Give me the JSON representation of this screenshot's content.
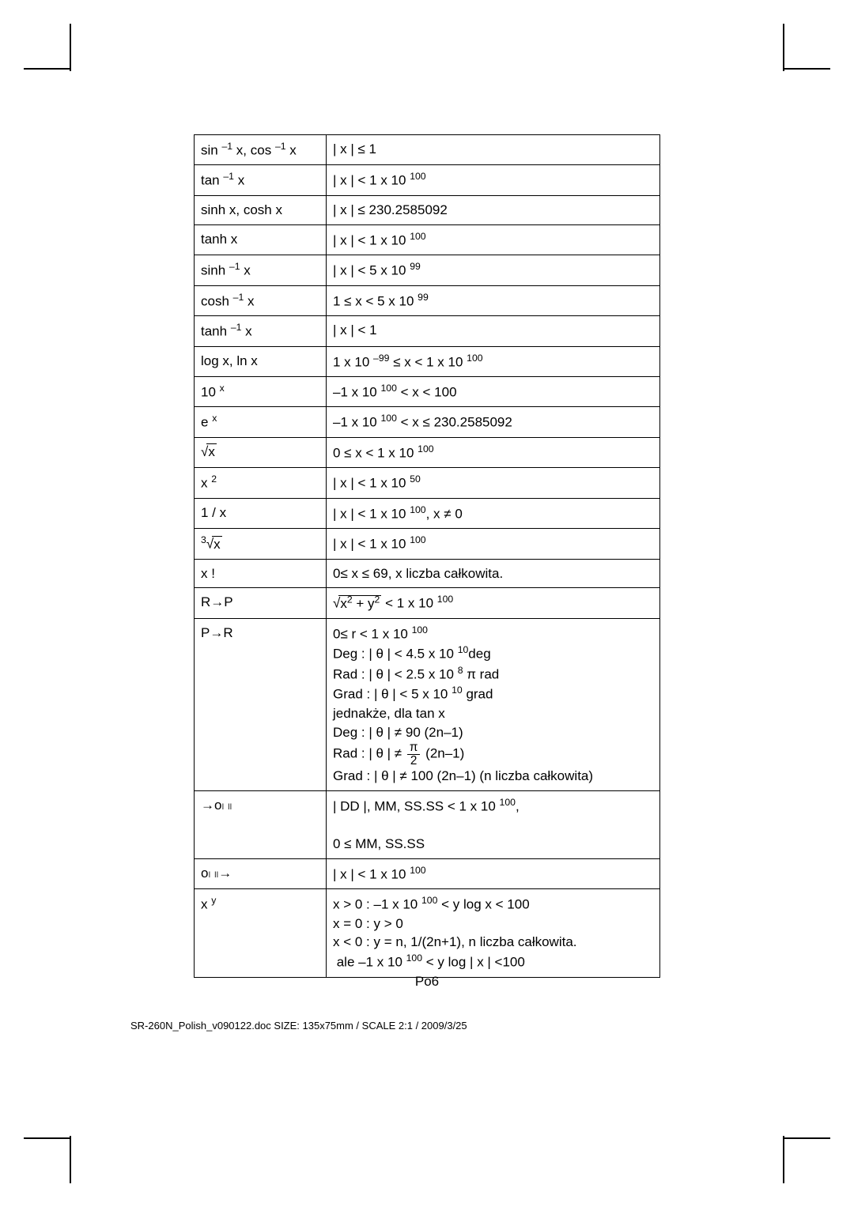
{
  "page_number": "Po6",
  "footer": "SR-260N_Polish_v090122.doc     SIZE: 135x75mm   /   SCALE 2:1   /   2009/3/25",
  "rows": [
    {
      "fn": "sin <sup>–1</sup> x, cos <sup>–1</sup> x",
      "range": "| x | ≤ 1"
    },
    {
      "fn": "tan <sup>–1</sup> x",
      "range": "| x | < 1 x 10 <sup>100</sup>"
    },
    {
      "fn": "sinh x, cosh x",
      "range": "| x | ≤ 230.2585092"
    },
    {
      "fn": "tanh x",
      "range": "| x | < 1 x 10 <sup>100</sup>"
    },
    {
      "fn": "sinh <sup>–1</sup> x",
      "range": "| x | < 5 x 10 <sup>99</sup>"
    },
    {
      "fn": "cosh <sup>–1</sup> x",
      "range": "1 ≤ x < 5 x 10 <sup>99</sup>"
    },
    {
      "fn": "tanh <sup>–1</sup> x",
      "range": "| x | < 1"
    },
    {
      "fn": "log x, ln x",
      "range": "1 x 10 <sup>–99</sup> ≤ x < 1 x 10 <sup>100</sup>"
    },
    {
      "fn": "10 <sup>x</sup>",
      "range": "–1 x 10 <sup>100</sup> < x < 100"
    },
    {
      "fn": "e <sup>x</sup>",
      "range": "–1 x 10 <sup>100</sup> <  x ≤ 230.2585092"
    },
    {
      "fn": "√<span class=\"sqrt\">x</span>",
      "range": "0 ≤ x < 1 x 10 <sup>100</sup>"
    },
    {
      "fn": "x <sup>2</sup>",
      "range": "| x | < 1 x 10 <sup>50</sup>"
    },
    {
      "fn": "1 / x",
      "range": "| x | < 1 x 10 <sup>100</sup>, x ≠ 0"
    },
    {
      "fn": "<sup>3</sup>√<span class=\"sqrt\">x</span>",
      "range": "| x | < 1 x 10 <sup>100</sup>"
    },
    {
      "fn": "x !",
      "range": "0≤ x ≤ 69, x liczba całkowita."
    },
    {
      "fn": "R→P",
      "range": "√<span class=\"sqrt\">x<sup>2</sup> + y<sup>2</sup></span>  < 1 x 10 <sup>100</sup>"
    },
    {
      "fn": "P→R",
      "range": "0≤ r < 1 x 10 <sup>100</sup><br>Deg : | θ | < 4.5 x 10 <sup>10</sup>deg<br>Rad : | θ | < 2.5 x 10 <sup>8</sup> π rad<br>Grad : | θ | < 5 x 10 <sup>10</sup> grad<br>jednakże, dla tan x<br>Deg : | θ  | ≠ 90 (2n–1)<br>Rad : | θ  | ≠ <span class=\"frac\"><span class=\"num\">π</span><span class=\"den\">2</span></span> (2n–1)<br>Grad : | θ  | ≠ 100 (2n–1) (n liczba całkowita)"
    },
    {
      "fn": "<span class=\"arrow-icon\">→</span>ο၊ ၊၊",
      "range": "| DD |, MM, SS.SS < 1 x 10 <sup>100</sup>,<br><br>0 ≤ MM, SS.SS"
    },
    {
      "fn": "ο၊ ၊၊<span class=\"arrow-icon\">→</span>",
      "range": "| x | < 1 x 10 <sup>100</sup>"
    },
    {
      "fn": "x <sup>y</sup>",
      "range": "x > 0 :  –1 x 10 <sup>100</sup> < y log x < 100<br>x = 0 : y > 0<br>x < 0 : y = n, 1/(2n+1), n liczba całkowita.<br>&nbsp;ale  –1 x 10 <sup>100</sup> < y log | x | <100"
    }
  ]
}
